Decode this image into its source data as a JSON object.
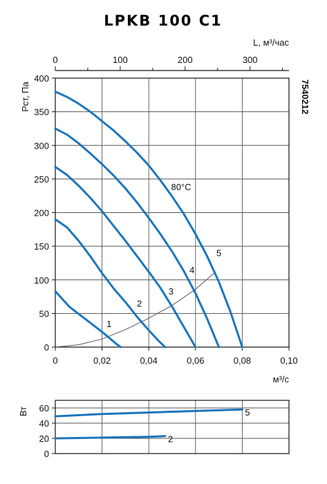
{
  "chart_data": [
    {
      "type": "line",
      "title": "LPKB 100 C1",
      "code": "7540212",
      "xlabel": "м³/с",
      "ylabel": "Рст, Па",
      "x2label": "L, м³/час",
      "xlim": [
        0,
        0.1
      ],
      "ylim": [
        0,
        400
      ],
      "x2lim": [
        0,
        360
      ],
      "xticks": [
        "0",
        "0,02",
        "0,04",
        "0,06",
        "0,08",
        "0,10"
      ],
      "yticks": [
        "0",
        "50",
        "100",
        "150",
        "200",
        "250",
        "300",
        "350",
        "400"
      ],
      "x2ticks": [
        "0",
        "100",
        "200",
        "300"
      ],
      "grid": true,
      "annotation": "80°C",
      "series": [
        {
          "name": "1",
          "x": [
            0,
            0.006,
            0.012,
            0.018,
            0.022,
            0.026,
            0.028
          ],
          "y": [
            83,
            60,
            44,
            28,
            17,
            5,
            0
          ]
        },
        {
          "name": "2",
          "x": [
            0,
            0.005,
            0.01,
            0.015,
            0.02,
            0.025,
            0.03,
            0.035,
            0.04,
            0.044,
            0.047
          ],
          "y": [
            190,
            178,
            158,
            135,
            110,
            87,
            67,
            45,
            25,
            10,
            0
          ]
        },
        {
          "name": "3",
          "x": [
            0,
            0.005,
            0.01,
            0.015,
            0.02,
            0.025,
            0.03,
            0.035,
            0.04,
            0.045,
            0.05,
            0.055,
            0.06
          ],
          "y": [
            268,
            256,
            240,
            222,
            202,
            180,
            158,
            135,
            112,
            88,
            60,
            30,
            0
          ]
        },
        {
          "name": "4",
          "x": [
            0,
            0.005,
            0.01,
            0.015,
            0.02,
            0.025,
            0.03,
            0.035,
            0.04,
            0.045,
            0.05,
            0.055,
            0.06,
            0.065,
            0.07
          ],
          "y": [
            325,
            316,
            303,
            288,
            272,
            255,
            236,
            215,
            192,
            168,
            142,
            113,
            80,
            42,
            0
          ]
        },
        {
          "name": "5",
          "x": [
            0,
            0.005,
            0.01,
            0.015,
            0.02,
            0.025,
            0.03,
            0.035,
            0.04,
            0.045,
            0.05,
            0.055,
            0.06,
            0.065,
            0.07,
            0.075,
            0.08
          ],
          "y": [
            380,
            372,
            362,
            350,
            336,
            322,
            306,
            289,
            270,
            248,
            224,
            198,
            168,
            135,
            97,
            52,
            0
          ]
        }
      ],
      "system_curve": {
        "x": [
          0,
          0.01,
          0.02,
          0.03,
          0.04,
          0.05,
          0.06,
          0.068
        ],
        "y": [
          0,
          3.5,
          12,
          26,
          43,
          62,
          86,
          110
        ]
      },
      "curve_labels": [
        {
          "text": "1",
          "x": 0.023,
          "y": 30
        },
        {
          "text": "2",
          "x": 0.036,
          "y": 60
        },
        {
          "text": "3",
          "x": 0.0495,
          "y": 78
        },
        {
          "text": "4",
          "x": 0.0585,
          "y": 110
        },
        {
          "text": "5",
          "x": 0.07,
          "y": 135
        }
      ]
    },
    {
      "type": "line",
      "ylabel": "Вт",
      "xlim": [
        0,
        0.1
      ],
      "ylim": [
        0,
        70
      ],
      "yticks": [
        "0",
        "20",
        "40",
        "60"
      ],
      "grid": true,
      "series": [
        {
          "name": "5",
          "x": [
            0,
            0.02,
            0.04,
            0.06,
            0.08
          ],
          "y": [
            49,
            52,
            54,
            56,
            58
          ]
        },
        {
          "name": "2",
          "x": [
            0,
            0.02,
            0.04,
            0.047
          ],
          "y": [
            20,
            21,
            22,
            23
          ]
        }
      ]
    }
  ]
}
